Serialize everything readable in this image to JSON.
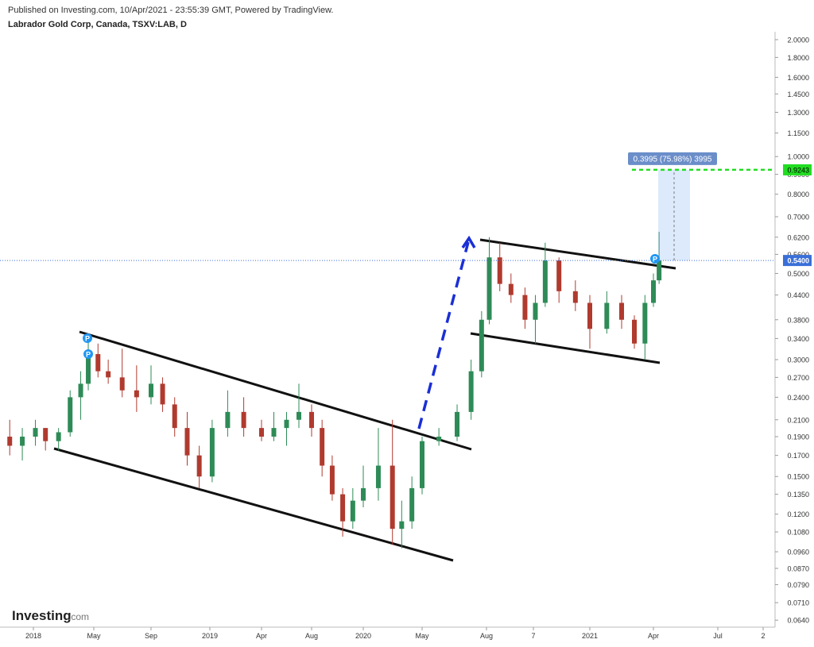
{
  "header": {
    "published": "Published on Investing.com, 10/Apr/2021 - 23:55:39 GMT, Powered by TradingView.",
    "symbol": "Labrador Gold Corp, Canada, TSXV:LAB, D"
  },
  "logo": {
    "main": "Investing",
    "suffix": ".com"
  },
  "chart_data": {
    "type": "candlestick",
    "log_scale": true,
    "up_color": "#2e8b57",
    "down_color": "#b03a2e",
    "x": [
      "2017-11-15",
      "2017-12-10",
      "2018-01-05",
      "2018-01-25",
      "2018-02-20",
      "2018-03-15",
      "2018-04-05",
      "2018-04-20",
      "2018-05-10",
      "2018-06-01",
      "2018-07-01",
      "2018-08-01",
      "2018-09-01",
      "2018-09-25",
      "2018-10-20",
      "2018-11-15",
      "2018-12-10",
      "2019-01-05",
      "2019-02-01",
      "2019-03-01",
      "2019-04-01",
      "2019-05-01",
      "2019-06-01",
      "2019-07-01",
      "2019-08-01",
      "2019-09-01",
      "2019-10-01",
      "2019-11-01",
      "2019-12-01",
      "2020-01-01",
      "2020-02-01",
      "2020-03-01",
      "2020-03-20",
      "2020-04-10",
      "2020-05-01",
      "2020-05-25",
      "2020-06-20",
      "2020-07-10",
      "2020-07-25",
      "2020-08-05",
      "2020-08-20",
      "2020-09-05",
      "2020-09-25",
      "2020-10-10",
      "2020-10-25",
      "2020-11-15",
      "2020-12-10",
      "2021-01-01",
      "2021-01-25",
      "2021-02-15",
      "2021-03-05",
      "2021-03-20",
      "2021-04-01",
      "2021-04-09"
    ],
    "open": [
      0.19,
      0.18,
      0.19,
      0.2,
      0.185,
      0.195,
      0.24,
      0.26,
      0.31,
      0.28,
      0.27,
      0.25,
      0.24,
      0.26,
      0.23,
      0.2,
      0.17,
      0.15,
      0.2,
      0.22,
      0.2,
      0.19,
      0.2,
      0.21,
      0.22,
      0.2,
      0.16,
      0.135,
      0.115,
      0.13,
      0.14,
      0.16,
      0.11,
      0.115,
      0.14,
      0.185,
      0.19,
      0.22,
      0.28,
      0.38,
      0.55,
      0.47,
      0.44,
      0.38,
      0.42,
      0.54,
      0.45,
      0.42,
      0.36,
      0.42,
      0.38,
      0.33,
      0.42,
      0.48
    ],
    "high": [
      0.21,
      0.2,
      0.21,
      0.2,
      0.2,
      0.25,
      0.28,
      0.34,
      0.33,
      0.3,
      0.32,
      0.29,
      0.29,
      0.27,
      0.24,
      0.22,
      0.18,
      0.21,
      0.25,
      0.24,
      0.21,
      0.22,
      0.22,
      0.26,
      0.23,
      0.21,
      0.17,
      0.14,
      0.14,
      0.16,
      0.2,
      0.21,
      0.13,
      0.15,
      0.19,
      0.2,
      0.23,
      0.3,
      0.4,
      0.62,
      0.6,
      0.5,
      0.46,
      0.44,
      0.6,
      0.55,
      0.48,
      0.44,
      0.45,
      0.44,
      0.39,
      0.44,
      0.5,
      0.64
    ],
    "low": [
      0.17,
      0.165,
      0.18,
      0.175,
      0.175,
      0.19,
      0.21,
      0.25,
      0.27,
      0.26,
      0.24,
      0.22,
      0.23,
      0.22,
      0.19,
      0.16,
      0.14,
      0.145,
      0.19,
      0.19,
      0.185,
      0.185,
      0.18,
      0.2,
      0.19,
      0.15,
      0.13,
      0.105,
      0.11,
      0.125,
      0.13,
      0.1,
      0.098,
      0.11,
      0.135,
      0.18,
      0.185,
      0.21,
      0.27,
      0.37,
      0.45,
      0.42,
      0.36,
      0.33,
      0.41,
      0.42,
      0.4,
      0.32,
      0.35,
      0.36,
      0.32,
      0.3,
      0.41,
      0.47
    ],
    "close": [
      0.18,
      0.19,
      0.2,
      0.185,
      0.195,
      0.24,
      0.26,
      0.31,
      0.28,
      0.27,
      0.25,
      0.24,
      0.26,
      0.23,
      0.2,
      0.17,
      0.15,
      0.2,
      0.22,
      0.2,
      0.19,
      0.2,
      0.21,
      0.22,
      0.2,
      0.16,
      0.135,
      0.115,
      0.13,
      0.14,
      0.16,
      0.11,
      0.115,
      0.14,
      0.185,
      0.19,
      0.22,
      0.28,
      0.38,
      0.55,
      0.47,
      0.44,
      0.38,
      0.42,
      0.54,
      0.45,
      0.42,
      0.36,
      0.42,
      0.38,
      0.33,
      0.42,
      0.48,
      0.54
    ],
    "xlim": [
      "2017-11-01",
      "2021-08-12"
    ],
    "xticks": [
      {
        "value": "2018-01-01",
        "label": "2018"
      },
      {
        "value": "2018-05-01",
        "label": "May"
      },
      {
        "value": "2018-09-01",
        "label": "Sep"
      },
      {
        "value": "2019-01-01",
        "label": "2019"
      },
      {
        "value": "2019-04-01",
        "label": "Apr"
      },
      {
        "value": "2019-08-01",
        "label": "Aug"
      },
      {
        "value": "2020-01-01",
        "label": "2020"
      },
      {
        "value": "2020-05-01",
        "label": "May"
      },
      {
        "value": "2020-08-01",
        "label": "Aug"
      },
      {
        "value": "2020-10-07",
        "label": "7"
      },
      {
        "value": "2021-01-01",
        "label": "2021"
      },
      {
        "value": "2021-04-01",
        "label": "Apr"
      },
      {
        "value": "2021-07-01",
        "label": "Jul"
      },
      {
        "value": "2021-08-02",
        "label": "2"
      }
    ],
    "ylim": [
      0.0614,
      2.096
    ],
    "yticks": [
      {
        "value": 2,
        "label": "2.0000"
      },
      {
        "value": 1.8,
        "label": "1.8000"
      },
      {
        "value": 1.6,
        "label": "1.6000"
      },
      {
        "value": 1.45,
        "label": "1.4500"
      },
      {
        "value": 1.3,
        "label": "1.3000"
      },
      {
        "value": 1.15,
        "label": "1.1500"
      },
      {
        "value": 1,
        "label": "1.0000"
      },
      {
        "value": 0.9,
        "label": "0.9000"
      },
      {
        "value": 0.8,
        "label": "0.8000"
      },
      {
        "value": 0.7,
        "label": "0.7000"
      },
      {
        "value": 0.62,
        "label": "0.6200"
      },
      {
        "value": 0.56,
        "label": "0.5600"
      },
      {
        "value": 0.5,
        "label": "0.5000"
      },
      {
        "value": 0.44,
        "label": "0.4400"
      },
      {
        "value": 0.38,
        "label": "0.3800"
      },
      {
        "value": 0.34,
        "label": "0.3400"
      },
      {
        "value": 0.3,
        "label": "0.3000"
      },
      {
        "value": 0.27,
        "label": "0.2700"
      },
      {
        "value": 0.24,
        "label": "0.2400"
      },
      {
        "value": 0.21,
        "label": "0.2100"
      },
      {
        "value": 0.19,
        "label": "0.1900"
      },
      {
        "value": 0.17,
        "label": "0.1700"
      },
      {
        "value": 0.15,
        "label": "0.1500"
      },
      {
        "value": 0.135,
        "label": "0.1350"
      },
      {
        "value": 0.12,
        "label": "0.1200"
      },
      {
        "value": 0.108,
        "label": "0.1080"
      },
      {
        "value": 0.096,
        "label": "0.0960"
      },
      {
        "value": 0.087,
        "label": "0.0870"
      },
      {
        "value": 0.079,
        "label": "0.0790"
      },
      {
        "value": 0.071,
        "label": "0.0710"
      },
      {
        "value": 0.064,
        "label": "0.0640"
      }
    ],
    "last_price": {
      "value": 0.54,
      "label": "0.5400",
      "color": "#3a6fd8"
    },
    "target_price": {
      "value": 0.9243,
      "label": "0.9243",
      "color": "#22dd22"
    },
    "measure_label": "0.3995 (75.98%) 3995",
    "pivot_marker": "P"
  }
}
